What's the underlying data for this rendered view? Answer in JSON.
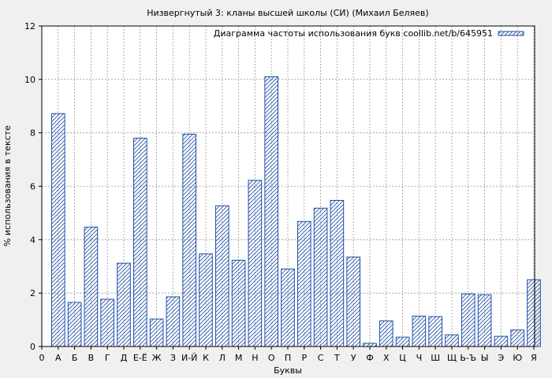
{
  "chart_data": {
    "type": "bar",
    "title": "Низвергнутый 3: кланы высшей школы (СИ) (Михаил Беляев)",
    "xlabel": "Буквы",
    "ylabel": "% использования в тексте",
    "legend": {
      "label": "Диаграмма частоты использования букв coollib.net/b/645951",
      "position": "top-right"
    },
    "ylim": [
      0,
      12
    ],
    "yticks": [
      "0",
      "2",
      "4",
      "6",
      "8",
      "10",
      "12"
    ],
    "x_origin_label": "0",
    "grid": true,
    "categories": [
      "А",
      "Б",
      "В",
      "Г",
      "Д",
      "Е-Ё",
      "Ж",
      "З",
      "И-Й",
      "К",
      "Л",
      "М",
      "Н",
      "О",
      "П",
      "Р",
      "С",
      "Т",
      "У",
      "Ф",
      "Х",
      "Ц",
      "Ч",
      "Ш",
      "Щ",
      "Ь-Ъ",
      "Ы",
      "Э",
      "Ю",
      "Я"
    ],
    "values": [
      8.72,
      1.65,
      4.47,
      1.77,
      3.12,
      7.8,
      1.03,
      1.86,
      7.95,
      3.47,
      5.27,
      3.23,
      6.22,
      10.1,
      2.9,
      4.68,
      5.18,
      5.47,
      3.35,
      0.12,
      0.96,
      0.35,
      1.14,
      1.12,
      0.44,
      1.97,
      1.94,
      0.38,
      0.62,
      2.5
    ],
    "colors": {
      "bar_edge": "#1f4ea6",
      "background": "#f0f0f0",
      "grid": "#999999"
    }
  }
}
